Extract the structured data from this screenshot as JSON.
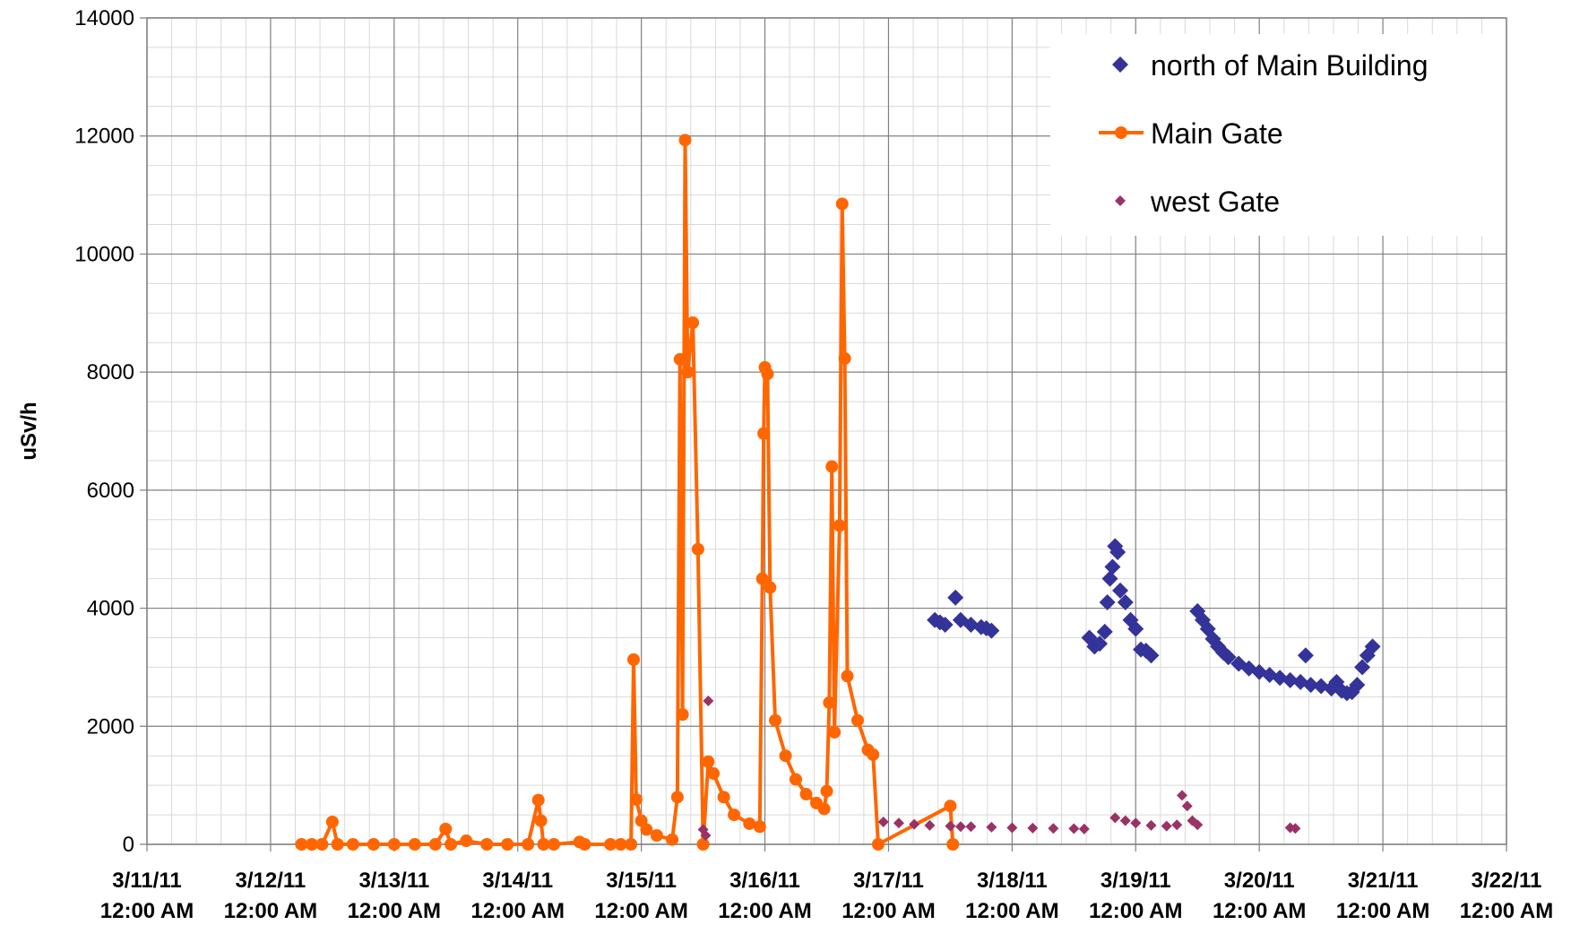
{
  "chart_data": {
    "type": "scatter",
    "title": "",
    "ylabel": "uSv/h",
    "xlabel": "",
    "ylim": [
      0,
      14000
    ],
    "yticks": [
      0,
      2000,
      4000,
      6000,
      8000,
      10000,
      12000,
      14000
    ],
    "y_tick_labels": [
      "0",
      "2000",
      "4000",
      "6000",
      "8000",
      "10000",
      "12000",
      "14000"
    ],
    "xlim": [
      "2011-03-11 00:00",
      "2011-03-22 00:00"
    ],
    "x_tick_labels": [
      {
        "date": "3/11/11",
        "time": "12:00 AM"
      },
      {
        "date": "3/12/11",
        "time": "12:00 AM"
      },
      {
        "date": "3/13/11",
        "time": "12:00 AM"
      },
      {
        "date": "3/14/11",
        "time": "12:00 AM"
      },
      {
        "date": "3/15/11",
        "time": "12:00 AM"
      },
      {
        "date": "3/16/11",
        "time": "12:00 AM"
      },
      {
        "date": "3/17/11",
        "time": "12:00 AM"
      },
      {
        "date": "3/18/11",
        "time": "12:00 AM"
      },
      {
        "date": "3/19/11",
        "time": "12:00 AM"
      },
      {
        "date": "3/20/11",
        "time": "12:00 AM"
      },
      {
        "date": "3/21/11",
        "time": "12:00 AM"
      },
      {
        "date": "3/22/11",
        "time": "12:00 AM"
      }
    ],
    "grid": true,
    "legend_position": "top-right",
    "colors": {
      "north_of_main_building": "#333399",
      "main_gate": "#ff6600",
      "west_gate": "#993366",
      "grid_major": "#808080",
      "grid_minor": "#d9d9d9"
    },
    "series": [
      {
        "name": "north of Main Building",
        "style": "diamond-markers",
        "points": [
          [
            "2011-03-17 09:00",
            3800
          ],
          [
            "2011-03-17 10:00",
            3760
          ],
          [
            "2011-03-17 11:00",
            3720
          ],
          [
            "2011-03-17 13:00",
            4180
          ],
          [
            "2011-03-17 14:00",
            3800
          ],
          [
            "2011-03-17 16:00",
            3720
          ],
          [
            "2011-03-17 18:00",
            3680
          ],
          [
            "2011-03-17 19:00",
            3660
          ],
          [
            "2011-03-17 20:00",
            3620
          ],
          [
            "2011-03-18 15:00",
            3500
          ],
          [
            "2011-03-18 16:00",
            3350
          ],
          [
            "2011-03-18 17:00",
            3400
          ],
          [
            "2011-03-18 18:00",
            3600
          ],
          [
            "2011-03-18 18:30",
            4100
          ],
          [
            "2011-03-18 19:00",
            4500
          ],
          [
            "2011-03-18 19:30",
            4700
          ],
          [
            "2011-03-18 20:00",
            5050
          ],
          [
            "2011-03-18 20:30",
            4950
          ],
          [
            "2011-03-18 21:00",
            4300
          ],
          [
            "2011-03-18 22:00",
            4100
          ],
          [
            "2011-03-18 23:00",
            3800
          ],
          [
            "2011-03-19 00:00",
            3650
          ],
          [
            "2011-03-19 01:00",
            3300
          ],
          [
            "2011-03-19 02:00",
            3280
          ],
          [
            "2011-03-19 03:00",
            3200
          ],
          [
            "2011-03-19 12:00",
            3950
          ],
          [
            "2011-03-19 13:00",
            3800
          ],
          [
            "2011-03-19 14:00",
            3650
          ],
          [
            "2011-03-19 15:00",
            3480
          ],
          [
            "2011-03-19 16:00",
            3350
          ],
          [
            "2011-03-19 17:00",
            3250
          ],
          [
            "2011-03-19 18:00",
            3170
          ],
          [
            "2011-03-19 20:00",
            3060
          ],
          [
            "2011-03-19 22:00",
            2980
          ],
          [
            "2011-03-20 00:00",
            2920
          ],
          [
            "2011-03-20 02:00",
            2870
          ],
          [
            "2011-03-20 04:00",
            2820
          ],
          [
            "2011-03-20 06:00",
            2780
          ],
          [
            "2011-03-20 08:00",
            2750
          ],
          [
            "2011-03-20 09:00",
            3200
          ],
          [
            "2011-03-20 10:00",
            2700
          ],
          [
            "2011-03-20 12:00",
            2680
          ],
          [
            "2011-03-20 14:00",
            2640
          ],
          [
            "2011-03-20 15:00",
            2750
          ],
          [
            "2011-03-20 16:00",
            2600
          ],
          [
            "2011-03-20 17:00",
            2560
          ],
          [
            "2011-03-20 18:00",
            2580
          ],
          [
            "2011-03-20 19:00",
            2700
          ],
          [
            "2011-03-20 20:00",
            3000
          ],
          [
            "2011-03-20 21:00",
            3200
          ],
          [
            "2011-03-20 22:00",
            3350
          ]
        ]
      },
      {
        "name": "Main Gate",
        "style": "line-with-circles",
        "points": [
          [
            "2011-03-12 06:00",
            0
          ],
          [
            "2011-03-12 08:00",
            0
          ],
          [
            "2011-03-12 10:00",
            0
          ],
          [
            "2011-03-12 12:00",
            380
          ],
          [
            "2011-03-12 13:00",
            0
          ],
          [
            "2011-03-12 16:00",
            0
          ],
          [
            "2011-03-12 20:00",
            0
          ],
          [
            "2011-03-13 00:00",
            0
          ],
          [
            "2011-03-13 04:00",
            0
          ],
          [
            "2011-03-13 08:00",
            0
          ],
          [
            "2011-03-13 10:00",
            260
          ],
          [
            "2011-03-13 11:00",
            0
          ],
          [
            "2011-03-13 14:00",
            60
          ],
          [
            "2011-03-13 18:00",
            0
          ],
          [
            "2011-03-13 22:00",
            0
          ],
          [
            "2011-03-14 02:00",
            0
          ],
          [
            "2011-03-14 04:00",
            750
          ],
          [
            "2011-03-14 04:30",
            400
          ],
          [
            "2011-03-14 05:00",
            0
          ],
          [
            "2011-03-14 07:00",
            0
          ],
          [
            "2011-03-14 12:00",
            40
          ],
          [
            "2011-03-14 13:00",
            0
          ],
          [
            "2011-03-14 18:00",
            0
          ],
          [
            "2011-03-14 20:00",
            0
          ],
          [
            "2011-03-14 22:00",
            0
          ],
          [
            "2011-03-14 22:30",
            3130
          ],
          [
            "2011-03-14 23:00",
            760
          ],
          [
            "2011-03-15 00:00",
            400
          ],
          [
            "2011-03-15 01:00",
            250
          ],
          [
            "2011-03-15 03:00",
            150
          ],
          [
            "2011-03-15 06:00",
            80
          ],
          [
            "2011-03-15 07:00",
            800
          ],
          [
            "2011-03-15 07:30",
            8217
          ],
          [
            "2011-03-15 08:00",
            2200
          ],
          [
            "2011-03-15 08:30",
            11930
          ],
          [
            "2011-03-15 09:00",
            8000
          ],
          [
            "2011-03-15 10:00",
            8837
          ],
          [
            "2011-03-15 11:00",
            5000
          ],
          [
            "2011-03-15 12:00",
            0
          ],
          [
            "2011-03-15 13:00",
            1400
          ],
          [
            "2011-03-15 14:00",
            1200
          ],
          [
            "2011-03-15 16:00",
            800
          ],
          [
            "2011-03-15 18:00",
            500
          ],
          [
            "2011-03-15 21:00",
            350
          ],
          [
            "2011-03-15 23:00",
            300
          ],
          [
            "2011-03-15 23:30",
            4500
          ],
          [
            "2011-03-15 23:45",
            6960
          ],
          [
            "2011-03-16 00:00",
            8080
          ],
          [
            "2011-03-16 00:30",
            7970
          ],
          [
            "2011-03-16 01:00",
            4350
          ],
          [
            "2011-03-16 02:00",
            2100
          ],
          [
            "2011-03-16 04:00",
            1500
          ],
          [
            "2011-03-16 06:00",
            1100
          ],
          [
            "2011-03-16 08:00",
            850
          ],
          [
            "2011-03-16 10:00",
            700
          ],
          [
            "2011-03-16 11:30",
            600
          ],
          [
            "2011-03-16 12:00",
            900
          ],
          [
            "2011-03-16 12:30",
            2400
          ],
          [
            "2011-03-16 13:00",
            6400
          ],
          [
            "2011-03-16 13:30",
            1900
          ],
          [
            "2011-03-16 14:30",
            5400
          ],
          [
            "2011-03-16 15:00",
            10850
          ],
          [
            "2011-03-16 15:30",
            8230
          ],
          [
            "2011-03-16 16:00",
            2850
          ],
          [
            "2011-03-16 18:00",
            2100
          ],
          [
            "2011-03-16 20:00",
            1600
          ],
          [
            "2011-03-16 21:00",
            1520
          ],
          [
            "2011-03-16 22:00",
            0
          ],
          [
            "2011-03-17 12:00",
            650
          ],
          [
            "2011-03-17 12:30",
            0
          ]
        ]
      },
      {
        "name": "west Gate",
        "style": "small-diamond-markers",
        "points": [
          [
            "2011-03-15 12:00",
            250
          ],
          [
            "2011-03-15 13:00",
            2430
          ],
          [
            "2011-03-15 12:30",
            150
          ],
          [
            "2011-03-16 23:00",
            380
          ],
          [
            "2011-03-17 02:00",
            360
          ],
          [
            "2011-03-17 05:00",
            340
          ],
          [
            "2011-03-17 08:00",
            320
          ],
          [
            "2011-03-17 12:00",
            310
          ],
          [
            "2011-03-17 14:00",
            300
          ],
          [
            "2011-03-17 16:00",
            300
          ],
          [
            "2011-03-17 20:00",
            290
          ],
          [
            "2011-03-18 00:00",
            280
          ],
          [
            "2011-03-18 04:00",
            275
          ],
          [
            "2011-03-18 08:00",
            270
          ],
          [
            "2011-03-18 12:00",
            265
          ],
          [
            "2011-03-18 14:00",
            260
          ],
          [
            "2011-03-18 20:00",
            450
          ],
          [
            "2011-03-18 22:00",
            400
          ],
          [
            "2011-03-19 00:00",
            360
          ],
          [
            "2011-03-19 03:00",
            320
          ],
          [
            "2011-03-19 06:00",
            310
          ],
          [
            "2011-03-19 08:00",
            330
          ],
          [
            "2011-03-19 09:00",
            830
          ],
          [
            "2011-03-19 10:00",
            650
          ],
          [
            "2011-03-19 11:00",
            400
          ],
          [
            "2011-03-19 12:00",
            330
          ],
          [
            "2011-03-20 06:00",
            280
          ],
          [
            "2011-03-20 07:00",
            270
          ]
        ]
      }
    ]
  }
}
